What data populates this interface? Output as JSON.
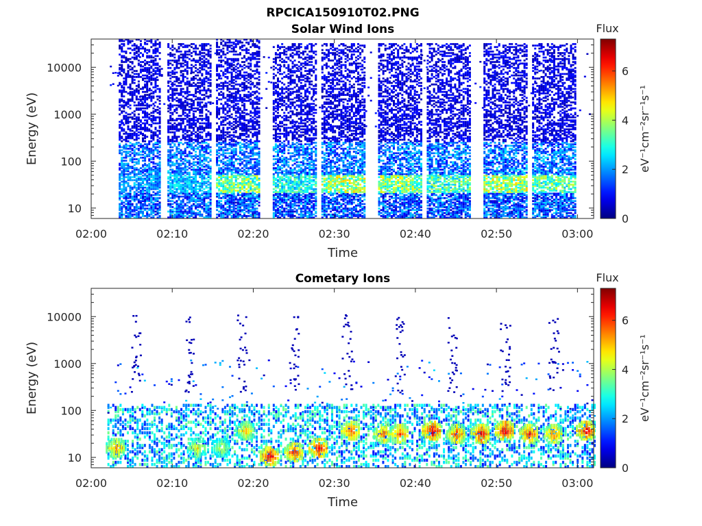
{
  "figure": {
    "filename_title": "RPCICA150910T02.PNG"
  },
  "colorbar": {
    "label": "Flux",
    "units": "eV⁻¹cm⁻²sr⁻¹s⁻¹",
    "range": [
      0,
      7.3
    ],
    "ticks": [
      0,
      2,
      4,
      6
    ],
    "colormap": "jet"
  },
  "chart_data": [
    {
      "type": "heatmap",
      "title": "Solar Wind Ions",
      "xlabel": "Time",
      "ylabel": "Energy (eV)",
      "xlim": [
        "02:00",
        "03:02"
      ],
      "ylim": [
        6,
        40000
      ],
      "yscale": "log",
      "xticks": [
        "02:00",
        "02:10",
        "02:20",
        "02:30",
        "02:40",
        "02:50",
        "03:00"
      ],
      "yticks": [
        10,
        100,
        1000,
        10000
      ],
      "grid": false,
      "bursts": [
        {
          "center": "02:06",
          "emax_eV": 40000,
          "peak_flux": 2.6
        },
        {
          "center": "02:12",
          "emax_eV": 30000,
          "peak_flux": 3.0
        },
        {
          "center": "02:18",
          "emax_eV": 40000,
          "peak_flux": 4.6
        },
        {
          "center": "02:25",
          "emax_eV": 30000,
          "peak_flux": 3.8
        },
        {
          "center": "02:31",
          "emax_eV": 30000,
          "peak_flux": 5.0
        },
        {
          "center": "02:38",
          "emax_eV": 30000,
          "peak_flux": 4.8
        },
        {
          "center": "02:44",
          "emax_eV": 30000,
          "peak_flux": 4.2
        },
        {
          "center": "02:51",
          "emax_eV": 30000,
          "peak_flux": 5.0
        },
        {
          "center": "02:57",
          "emax_eV": 30000,
          "peak_flux": 4.4
        }
      ]
    },
    {
      "type": "heatmap",
      "title": "Cometary Ions",
      "xlabel": "Time",
      "ylabel": "Energy (eV)",
      "xlim": [
        "02:00",
        "03:02"
      ],
      "ylim": [
        6,
        40000
      ],
      "yscale": "log",
      "xticks": [
        "02:00",
        "02:10",
        "02:20",
        "02:30",
        "02:40",
        "02:50",
        "03:00"
      ],
      "yticks": [
        10,
        100,
        1000,
        10000
      ],
      "grid": false,
      "hotspots": [
        {
          "time": "02:03",
          "energy_eV": 15,
          "flux": 5.8
        },
        {
          "time": "02:13",
          "energy_eV": 15,
          "flux": 5.0
        },
        {
          "time": "02:16",
          "energy_eV": 15,
          "flux": 4.6
        },
        {
          "time": "02:19",
          "energy_eV": 35,
          "flux": 5.4
        },
        {
          "time": "02:22",
          "energy_eV": 10,
          "flux": 7.0
        },
        {
          "time": "02:25",
          "energy_eV": 12,
          "flux": 6.6
        },
        {
          "time": "02:28",
          "energy_eV": 15,
          "flux": 7.0
        },
        {
          "time": "02:32",
          "energy_eV": 35,
          "flux": 6.4
        },
        {
          "time": "02:36",
          "energy_eV": 30,
          "flux": 6.0
        },
        {
          "time": "02:38",
          "energy_eV": 30,
          "flux": 6.4
        },
        {
          "time": "02:42",
          "energy_eV": 35,
          "flux": 7.2
        },
        {
          "time": "02:45",
          "energy_eV": 30,
          "flux": 6.4
        },
        {
          "time": "02:48",
          "energy_eV": 30,
          "flux": 7.0
        },
        {
          "time": "02:51",
          "energy_eV": 35,
          "flux": 7.2
        },
        {
          "time": "02:54",
          "energy_eV": 30,
          "flux": 6.6
        },
        {
          "time": "02:57",
          "energy_eV": 30,
          "flux": 6.2
        },
        {
          "time": "03:01",
          "energy_eV": 35,
          "flux": 7.0
        }
      ]
    }
  ]
}
